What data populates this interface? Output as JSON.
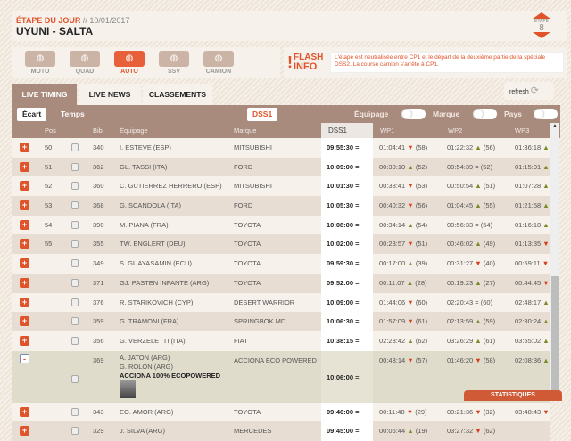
{
  "header": {
    "label": "ÉTAPE DU JOUR",
    "date": " // 10/01/2017",
    "route": "UYUNI - SALTA",
    "etape_label": "ÉTAPE",
    "etape_num": "8"
  },
  "categories": [
    {
      "label": "MOTO",
      "icon": "motorbike-icon"
    },
    {
      "label": "QUAD",
      "icon": "quad-icon"
    },
    {
      "label": "AUTO",
      "icon": "car-icon",
      "active": true
    },
    {
      "label": "SSV",
      "icon": "ssv-icon"
    },
    {
      "label": "CAMION",
      "icon": "truck-icon"
    }
  ],
  "flash": {
    "title1": "FLASH",
    "title2": "INFO",
    "message": "L'étape est neutralisée entre CP1 et le départ de la deuxième partie de la spéciale DSS2. La course camion s'arrête à CP1."
  },
  "tabs": [
    "LIVE TIMING",
    "LIVE NEWS",
    "CLASSEMENTS"
  ],
  "refresh": "refresh",
  "toolbar": {
    "ecart": "Écart",
    "temps": "Temps",
    "dss": "DSS1",
    "equipage": "Équipage",
    "marque": "Marque",
    "pays": "Pays"
  },
  "columns": [
    "Pos",
    "Bib",
    "Équipage",
    "Marque",
    "DSS1",
    "WP1",
    "WP2",
    "WP3"
  ],
  "rows": [
    {
      "pos": "50",
      "bib": "340",
      "crew": "I. ESTEVE (ESP)",
      "brand": "MITSUBISHI",
      "dss": "09:55:30 =",
      "wp1": "01:04:41",
      "wp1d": "dn",
      "wp1r": "(58)",
      "wp2": "01:22:32",
      "wp2d": "up",
      "wp2r": "(56)",
      "wp3": "01:36:18",
      "wp3d": "up"
    },
    {
      "pos": "51",
      "bib": "362",
      "crew": "GL. TASSI (ITA)",
      "brand": "FORD",
      "dss": "10:09:00 =",
      "wp1": "00:30:10",
      "wp1d": "up",
      "wp1r": "(52)",
      "wp2": "00:54:39",
      "wp2d": "eq",
      "wp2r": "(52)",
      "wp3": "01:15:01",
      "wp3d": "up"
    },
    {
      "pos": "52",
      "bib": "360",
      "crew": "C. GUTIERREZ HERRERO (ESP)",
      "brand": "MITSUBISHI",
      "dss": "10:01:30 =",
      "wp1": "00:33:41",
      "wp1d": "dn",
      "wp1r": "(53)",
      "wp2": "00:50:54",
      "wp2d": "up",
      "wp2r": "(51)",
      "wp3": "01:07:28",
      "wp3d": "up"
    },
    {
      "pos": "53",
      "bib": "368",
      "crew": "G. SCANDOLA (ITA)",
      "brand": "FORD",
      "dss": "10:05:30 =",
      "wp1": "00:40:32",
      "wp1d": "dn",
      "wp1r": "(56)",
      "wp2": "01:04:45",
      "wp2d": "up",
      "wp2r": "(55)",
      "wp3": "01:21:58",
      "wp3d": "up"
    },
    {
      "pos": "54",
      "bib": "390",
      "crew": "M. PIANA (FRA)",
      "brand": "TOYOTA",
      "dss": "10:08:00 =",
      "wp1": "00:34:14",
      "wp1d": "up",
      "wp1r": "(54)",
      "wp2": "00:56:33",
      "wp2d": "eq",
      "wp2r": "(54)",
      "wp3": "01:16:18",
      "wp3d": "up"
    },
    {
      "pos": "55",
      "bib": "355",
      "crew": "TW. ENGLERT (DEU)",
      "brand": "TOYOTA",
      "dss": "10:02:00 =",
      "wp1": "00:23:57",
      "wp1d": "dn",
      "wp1r": "(51)",
      "wp2": "00:46:02",
      "wp2d": "up",
      "wp2r": "(49)",
      "wp3": "01:13:35",
      "wp3d": "dn"
    },
    {
      "pos": "",
      "bib": "349",
      "crew": "S. GUAYASAMIN (ECU)",
      "brand": "TOYOTA",
      "dss": "09:59:30 =",
      "wp1": "00:17:00",
      "wp1d": "up",
      "wp1r": "(39)",
      "wp2": "00:31:27",
      "wp2d": "dn",
      "wp2r": "(40)",
      "wp3": "00:59:11",
      "wp3d": "dn"
    },
    {
      "pos": "",
      "bib": "371",
      "crew": "GJ. PASTEN INFANTE (ARG)",
      "brand": "TOYOTA",
      "dss": "09:52:00 =",
      "wp1": "00:11:07",
      "wp1d": "up",
      "wp1r": "(28)",
      "wp2": "00:19:23",
      "wp2d": "up",
      "wp2r": "(27)",
      "wp3": "00:44:45",
      "wp3d": "dn"
    },
    {
      "pos": "",
      "bib": "376",
      "crew": "R. STARIKOVICH (CYP)",
      "brand": "DESERT WARRIOR",
      "dss": "10:09:00 =",
      "wp1": "01:44:06",
      "wp1d": "dn",
      "wp1r": "(60)",
      "wp2": "02:20:43",
      "wp2d": "eq",
      "wp2r": "(60)",
      "wp3": "02:48:17",
      "wp3d": "up"
    },
    {
      "pos": "",
      "bib": "359",
      "crew": "G. TRAMONI (FRA)",
      "brand": "SPRINGBOK MD",
      "dss": "10:06:30 =",
      "wp1": "01:57:09",
      "wp1d": "dn",
      "wp1r": "(61)",
      "wp2": "02:13:59",
      "wp2d": "up",
      "wp2r": "(59)",
      "wp3": "02:30:24",
      "wp3d": "up"
    },
    {
      "pos": "",
      "bib": "356",
      "crew": "G. VERZELETTI (ITA)",
      "brand": "FIAT",
      "dss": "10:38:15 =",
      "wp1": "02:23:42",
      "wp1d": "up",
      "wp1r": "(62)",
      "wp2": "03:26:29",
      "wp2d": "up",
      "wp2r": "(61)",
      "wp3": "03:55:02",
      "wp3d": "up"
    },
    {
      "pos": "",
      "bib": "369",
      "crew": "A. JATON (ARG)",
      "crew2": "G. ROLON (ARG)",
      "team": "ACCIONA 100% ECOPOWERED",
      "brand": "ACCIONA ECO POWERED",
      "dss": "10:06:00 =",
      "wp1": "00:43:14",
      "wp1d": "dn",
      "wp1r": "(57)",
      "wp2": "01:46:20",
      "wp2d": "dn",
      "wp2r": "(58)",
      "wp3": "02:08:36",
      "wp3d": "up",
      "expanded": true
    },
    {
      "pos": "",
      "bib": "343",
      "crew": "EO. AMOR (ARG)",
      "brand": "TOYOTA",
      "dss": "09:46:00 =",
      "wp1": "00:11:48",
      "wp1d": "dn",
      "wp1r": "(29)",
      "wp2": "00:21:36",
      "wp2d": "dn",
      "wp2r": "(32)",
      "wp3": "03:48:43",
      "wp3d": "dn"
    },
    {
      "pos": "",
      "bib": "329",
      "crew": "J. SILVA (ARG)",
      "brand": "MERCEDES",
      "dss": "09:45:00 =",
      "wp1": "00:06:44",
      "wp1d": "up",
      "wp1r": "(19)",
      "wp2": "03:27:32",
      "wp2d": "dn",
      "wp2r": "(62)",
      "wp3": "",
      "wp3d": ""
    }
  ],
  "statistics": "STATISTIQUES",
  "colors": {
    "accent": "#e0542b",
    "bar": "#a88b7d",
    "up": "#7a8a2a",
    "down": "#d63a1a"
  }
}
